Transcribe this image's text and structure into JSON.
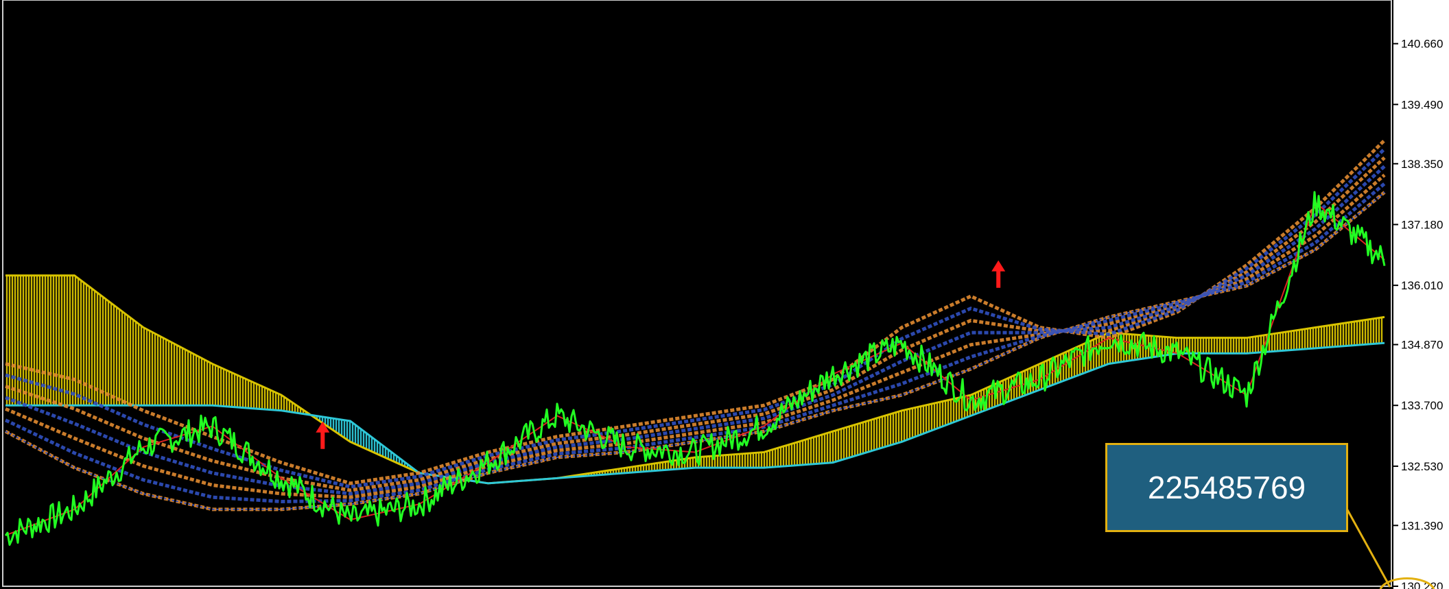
{
  "chart_data": {
    "type": "line",
    "title": "",
    "xlabel": "",
    "ylabel": "",
    "ylim": [
      130.22,
      141.5
    ],
    "yticks": [
      "140.660",
      "139.490",
      "138.350",
      "137.180",
      "136.010",
      "134.870",
      "133.700",
      "132.530",
      "131.390",
      "130.220"
    ],
    "grid": false,
    "legend": "none",
    "x": [
      0,
      5,
      10,
      15,
      20,
      25,
      30,
      35,
      40,
      45,
      50,
      55,
      60,
      65,
      70,
      75,
      80,
      85,
      90,
      95,
      100
    ],
    "series": [
      {
        "role": "price",
        "color": "#22ff22",
        "values": [
          131.2,
          131.7,
          132.9,
          133.3,
          132.3,
          131.5,
          131.8,
          132.6,
          133.5,
          132.9,
          132.8,
          133.3,
          134.3,
          134.9,
          133.8,
          134.2,
          135.0,
          134.7,
          133.9,
          137.6,
          136.5
        ]
      },
      {
        "role": "cloud-span-a",
        "color": "#d9c400",
        "values": [
          136.2,
          136.2,
          135.2,
          134.5,
          133.9,
          133.0,
          132.4,
          132.2,
          132.3,
          132.5,
          132.7,
          132.8,
          133.2,
          133.6,
          133.9,
          134.5,
          135.1,
          135.0,
          135.0,
          135.2,
          135.4
        ]
      },
      {
        "role": "cloud-span-b",
        "color": "#2ec8d8",
        "values": [
          133.7,
          133.7,
          133.7,
          133.7,
          133.6,
          133.4,
          132.4,
          132.2,
          132.3,
          132.4,
          132.5,
          132.5,
          132.6,
          133.0,
          133.5,
          134.0,
          134.5,
          134.7,
          134.7,
          134.8,
          134.9
        ]
      },
      {
        "role": "cloud-upper",
        "color": "#e08a30",
        "values": [
          134.5,
          134.2,
          133.6,
          133.1,
          132.6,
          132.2,
          132.4,
          132.8,
          133.1,
          133.3,
          133.5,
          133.7,
          134.2,
          135.2,
          135.8,
          135.2,
          135.0,
          135.5,
          136.4,
          137.5,
          138.8
        ]
      },
      {
        "role": "cloud-lower",
        "color": "#3050c0",
        "values": [
          133.2,
          132.5,
          132.0,
          131.7,
          131.7,
          131.8,
          132.0,
          132.4,
          132.7,
          132.8,
          133.0,
          133.2,
          133.6,
          133.9,
          134.4,
          135.0,
          135.4,
          135.7,
          136.0,
          136.7,
          137.8
        ]
      }
    ],
    "annotations": [
      {
        "type": "arrow-up",
        "color": "#ff1a1a",
        "x": 23,
        "y": 133.1
      },
      {
        "type": "arrow-up",
        "color": "#ff1a1a",
        "x": 72,
        "y": 136.2
      }
    ],
    "id_label": "225485769",
    "colors": {
      "background": "#000000",
      "axis_panel": "#ffffff",
      "zigzag": "#dd2222",
      "badge_fill": "#1f5f7f",
      "badge_border": "#e3b111"
    }
  }
}
